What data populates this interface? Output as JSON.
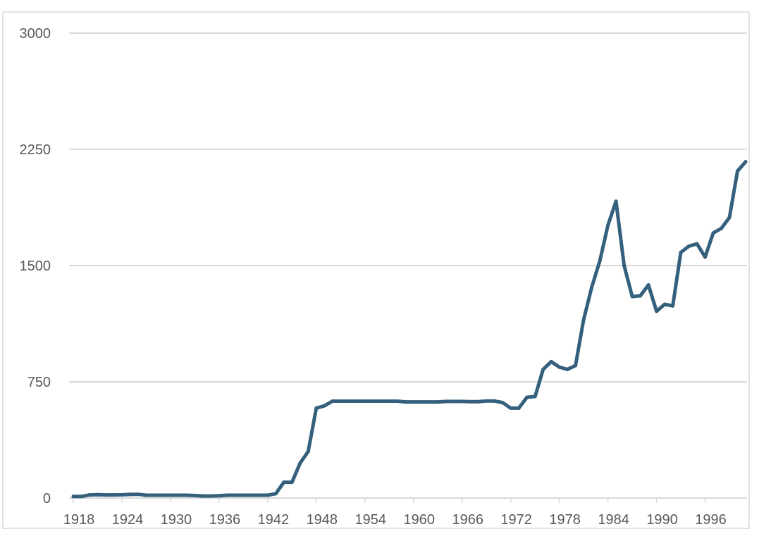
{
  "chart_data": {
    "type": "line",
    "title": "",
    "xlabel": "",
    "ylabel": "",
    "xlim": [
      1918,
      2001
    ],
    "ylim": [
      0,
      3000
    ],
    "grid": true,
    "legend": "none",
    "colors": {
      "line": "#34607d",
      "grid": "#d9d9d9",
      "text": "#595959"
    },
    "y_ticks": [
      {
        "value": 0,
        "label": "0"
      },
      {
        "value": 750,
        "label": "750"
      },
      {
        "value": 1500,
        "label": "1500"
      },
      {
        "value": 2250,
        "label": "2250"
      },
      {
        "value": 3000,
        "label": "3000"
      }
    ],
    "x_ticks": [
      {
        "value": 1918,
        "label": "1918"
      },
      {
        "value": 1924,
        "label": "1924"
      },
      {
        "value": 1930,
        "label": "1930"
      },
      {
        "value": 1936,
        "label": "1936"
      },
      {
        "value": 1942,
        "label": "1942"
      },
      {
        "value": 1948,
        "label": "1948"
      },
      {
        "value": 1954,
        "label": "1954"
      },
      {
        "value": 1960,
        "label": "1960"
      },
      {
        "value": 1966,
        "label": "1966"
      },
      {
        "value": 1972,
        "label": "1972"
      },
      {
        "value": 1978,
        "label": "1978"
      },
      {
        "value": 1984,
        "label": "1984"
      },
      {
        "value": 1990,
        "label": "1990"
      },
      {
        "value": 1996,
        "label": "1996"
      }
    ],
    "series": [
      {
        "x": [
          1918,
          1919,
          1920,
          1921,
          1922,
          1923,
          1924,
          1925,
          1926,
          1927,
          1928,
          1929,
          1930,
          1931,
          1932,
          1933,
          1934,
          1935,
          1936,
          1937,
          1938,
          1939,
          1940,
          1941,
          1942,
          1943,
          1944,
          1945,
          1946,
          1947,
          1948,
          1949,
          1950,
          1951,
          1952,
          1953,
          1954,
          1955,
          1956,
          1957,
          1958,
          1959,
          1960,
          1961,
          1962,
          1963,
          1964,
          1965,
          1966,
          1967,
          1968,
          1969,
          1970,
          1971,
          1972,
          1973,
          1974,
          1975,
          1976,
          1977,
          1978,
          1979,
          1980,
          1981,
          1982,
          1983,
          1984,
          1985,
          1986,
          1987,
          1988,
          1989,
          1990,
          1991,
          1992,
          1993,
          1994,
          1995,
          1996,
          1997,
          1998,
          1999,
          2000,
          2001
        ],
        "values": [
          10,
          10,
          20,
          22,
          20,
          20,
          21,
          23,
          24,
          18,
          18,
          18,
          18,
          18,
          18,
          16,
          13,
          13,
          15,
          18,
          18,
          18,
          18,
          18,
          18,
          28,
          102,
          102,
          225,
          300,
          580,
          595,
          625,
          625,
          625,
          625,
          625,
          625,
          625,
          625,
          625,
          620,
          620,
          620,
          620,
          620,
          623,
          623,
          623,
          622,
          622,
          626,
          626,
          616,
          580,
          580,
          650,
          655,
          830,
          880,
          845,
          830,
          855,
          1150,
          1360,
          1530,
          1760,
          1915,
          1500,
          1300,
          1305,
          1375,
          1205,
          1250,
          1240,
          1585,
          1625,
          1640,
          1555,
          1710,
          1740,
          1810,
          2110,
          2170
        ]
      }
    ]
  }
}
